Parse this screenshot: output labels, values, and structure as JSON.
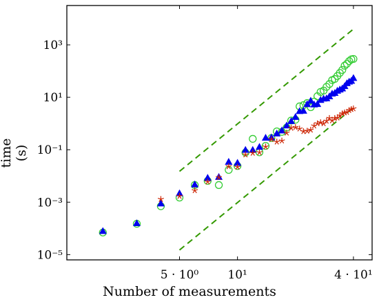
{
  "chart_data": {
    "type": "scatter",
    "xlabel": "Number of measurements",
    "ylabel": "time (s)",
    "x_scale": "log",
    "y_scale": "log",
    "xlim": [
      1.3,
      50
    ],
    "ylim": [
      6.3e-06,
      31623
    ],
    "x_ticks": [
      {
        "value": 5,
        "label": "5 · 10⁰"
      },
      {
        "value": 10,
        "label": "10¹"
      },
      {
        "value": 40,
        "label": "4 · 10¹"
      }
    ],
    "y_ticks": [
      {
        "value": 1e-05,
        "label": "10⁻⁵"
      },
      {
        "value": 0.001,
        "label": "10⁻³"
      },
      {
        "value": 0.1,
        "label": "10⁻¹"
      },
      {
        "value": 10,
        "label": "10¹"
      },
      {
        "value": 1000,
        "label": "10³"
      }
    ],
    "grid": false,
    "series": [
      {
        "marker": "circle",
        "color": "#33cc33",
        "x": [
          2,
          3,
          4,
          5,
          6,
          7,
          8,
          9,
          10,
          11,
          12,
          13,
          14,
          15,
          16,
          17,
          18,
          19,
          20,
          21,
          22,
          23,
          24,
          25,
          26,
          27,
          28,
          29,
          30,
          31,
          32,
          33,
          34,
          35,
          36,
          37,
          38,
          39,
          40
        ],
        "y": [
          7e-05,
          0.00015,
          0.0007,
          0.0015,
          0.0045,
          0.0065,
          0.0045,
          0.017,
          0.024,
          0.078,
          0.26,
          0.08,
          0.14,
          0.28,
          0.5,
          0.48,
          0.7,
          1.3,
          1.4,
          4.5,
          5,
          6,
          4.2,
          6.8,
          11,
          16,
          18,
          25,
          32,
          45,
          50,
          65,
          85,
          110,
          160,
          190,
          240,
          280,
          290
        ]
      },
      {
        "marker": "triangle",
        "color": "#0000ee",
        "x": [
          2,
          3,
          4,
          5,
          6,
          7,
          8,
          9,
          10,
          11,
          12,
          13,
          14,
          15,
          16,
          17,
          18,
          19,
          20,
          21,
          22,
          23,
          24,
          25,
          26,
          27,
          28,
          29,
          30,
          31,
          32,
          33,
          34,
          35,
          36,
          37,
          38,
          39,
          40
        ],
        "y": [
          8e-05,
          0.00016,
          0.0009,
          0.0022,
          0.0048,
          0.0086,
          0.0093,
          0.035,
          0.032,
          0.1,
          0.1,
          0.13,
          0.29,
          0.3,
          0.42,
          0.55,
          0.85,
          1.25,
          1.8,
          3,
          3.1,
          5.5,
          7.5,
          5.4,
          5.6,
          8,
          9,
          9.2,
          11,
          14,
          14.8,
          18,
          20,
          22,
          27,
          35,
          40,
          43,
          55
        ]
      },
      {
        "marker": "star",
        "color": "#cc2200",
        "x": [
          4,
          5,
          6,
          7,
          8,
          9,
          10,
          11,
          12,
          13,
          14,
          15,
          16,
          17,
          18,
          19,
          20,
          21,
          22,
          23,
          24,
          25,
          26,
          27,
          28,
          29,
          30,
          31,
          32,
          33,
          34,
          35,
          36,
          37,
          38,
          39,
          40
        ],
        "y": [
          0.0013,
          0.0017,
          0.0028,
          0.006,
          0.0088,
          0.023,
          0.022,
          0.065,
          0.075,
          0.079,
          0.13,
          0.25,
          0.2,
          0.22,
          0.44,
          0.67,
          0.72,
          0.63,
          0.5,
          0.52,
          0.57,
          0.82,
          1,
          1.1,
          1,
          1.25,
          1.6,
          1.3,
          1.6,
          1.65,
          2,
          2.4,
          2.6,
          2.7,
          3.2,
          3.5,
          3.7
        ]
      }
    ],
    "reference_lines": [
      {
        "style": "dashed",
        "color": "#339900",
        "x": [
          5,
          40
        ],
        "y": [
          0.015,
          4000
        ]
      },
      {
        "style": "dashed",
        "color": "#339900",
        "x": [
          5,
          40
        ],
        "y": [
          1.5e-05,
          4
        ]
      }
    ]
  }
}
